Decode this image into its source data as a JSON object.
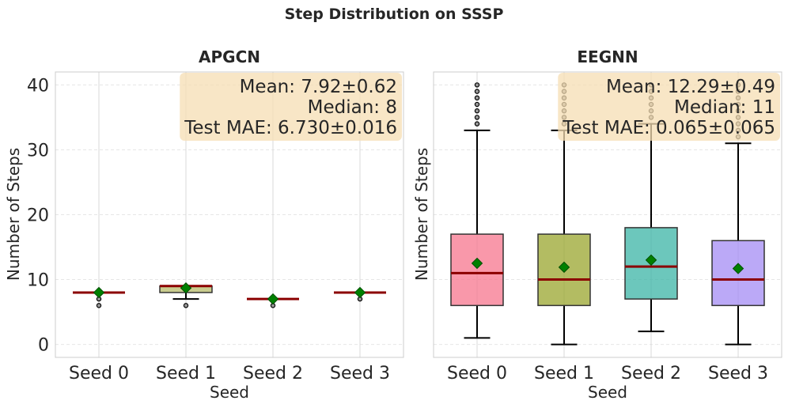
{
  "figure": {
    "title": "Step Distribution on SSSP"
  },
  "chart_data": [
    {
      "type": "box",
      "title": "APGCN",
      "xlabel": "Seed",
      "ylabel": "Number of Steps",
      "ylim": [
        -2,
        42
      ],
      "yticks": [
        0,
        10,
        20,
        30,
        40
      ],
      "categories": [
        "Seed 0",
        "Seed 1",
        "Seed 2",
        "Seed 3"
      ],
      "colors": [
        "#f4a6b3",
        "#b7bb6a",
        "#8fd0c8",
        "#c6b4f2"
      ],
      "median_color": "#8b0000",
      "mean_color": "#008000",
      "boxes": [
        {
          "whislo": 8,
          "q1": 8,
          "med": 8,
          "q3": 8,
          "whishi": 8,
          "mean": 8.0,
          "fliers": [
            6,
            7
          ]
        },
        {
          "whislo": 7,
          "q1": 8,
          "med": 9,
          "q3": 9,
          "whishi": 9,
          "mean": 8.7,
          "fliers": [
            6
          ]
        },
        {
          "whislo": 7,
          "q1": 7,
          "med": 7,
          "q3": 7,
          "whishi": 7,
          "mean": 7.0,
          "fliers": [
            6
          ]
        },
        {
          "whislo": 8,
          "q1": 8,
          "med": 8,
          "q3": 8,
          "whishi": 8,
          "mean": 8.0,
          "fliers": [
            7
          ]
        }
      ],
      "stats": {
        "mean": "Mean: 7.92±0.62",
        "median": "Median: 8",
        "mae": "Test MAE: 6.730±0.016"
      }
    },
    {
      "type": "box",
      "title": "EEGNN",
      "xlabel": "Seed",
      "ylabel": "Number of Steps",
      "ylim": [
        -2,
        42
      ],
      "yticks": [
        0,
        10,
        20,
        30,
        40
      ],
      "categories": [
        "Seed 0",
        "Seed 1",
        "Seed 2",
        "Seed 3"
      ],
      "colors": [
        "#f7768d",
        "#99a52e",
        "#3bb4a6",
        "#a48cf4"
      ],
      "median_color": "#8b0000",
      "mean_color": "#008000",
      "boxes": [
        {
          "whislo": 1,
          "q1": 6,
          "med": 11,
          "q3": 17,
          "whishi": 33,
          "mean": 12.5,
          "fliers": [
            34,
            35,
            36,
            37,
            38,
            39,
            40
          ]
        },
        {
          "whislo": 0,
          "q1": 6,
          "med": 10,
          "q3": 17,
          "whishi": 33,
          "mean": 11.9,
          "fliers": [
            34,
            35,
            36,
            37,
            38,
            39,
            40
          ]
        },
        {
          "whislo": 2,
          "q1": 7,
          "med": 12,
          "q3": 18,
          "whishi": 34,
          "mean": 13.0,
          "fliers": [
            35,
            36,
            37,
            38,
            39,
            40
          ]
        },
        {
          "whislo": 0,
          "q1": 6,
          "med": 10,
          "q3": 16,
          "whishi": 31,
          "mean": 11.7,
          "fliers": [
            32,
            33,
            34,
            35,
            36,
            37,
            38,
            39,
            40
          ]
        }
      ],
      "stats": {
        "mean": "Mean: 12.29±0.49",
        "median": "Median: 11",
        "mae": "Test MAE: 0.065±0.065"
      }
    }
  ]
}
